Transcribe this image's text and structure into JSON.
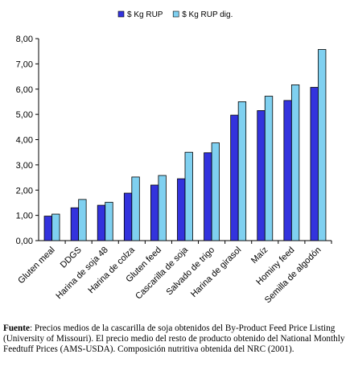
{
  "chart_data": {
    "type": "bar",
    "categories": [
      "Gluten meal",
      "DDGS",
      "Harina de soja 48",
      "Harina de colza",
      "Gluten feed",
      "Cascarilla de soja",
      "Salvado de trigo",
      "Harina de girasol",
      "Maíz",
      "Hominy feed",
      "Semilla de algodón"
    ],
    "series": [
      {
        "name": "$ Kg RUP",
        "color": "#3333dd",
        "values": [
          0.97,
          1.3,
          1.4,
          1.88,
          2.2,
          2.45,
          3.48,
          4.97,
          5.15,
          5.55,
          6.07
        ]
      },
      {
        "name": "$ Kg RUP dig.",
        "color": "#7fd0f0",
        "values": [
          1.05,
          1.63,
          1.52,
          2.52,
          2.58,
          3.5,
          3.87,
          5.5,
          5.72,
          6.17,
          7.57
        ]
      }
    ],
    "ylim": [
      0,
      8
    ],
    "yticks": [
      "0,00",
      "1,00",
      "2,00",
      "3,00",
      "4,00",
      "5,00",
      "6,00",
      "7,00",
      "8,00"
    ],
    "legend_position": "top-center",
    "grid": false
  },
  "caption": {
    "label": "Fuente",
    "text": ": Precios medios de la cascarilla de soja obtenidos del By-Product Feed Price Listing (University of Missouri). El precio medio del resto de producto obtenido del National Monthly Feedtuff Prices (AMS-USDA). Composición nutritiva obtenida del NRC (2001)."
  }
}
